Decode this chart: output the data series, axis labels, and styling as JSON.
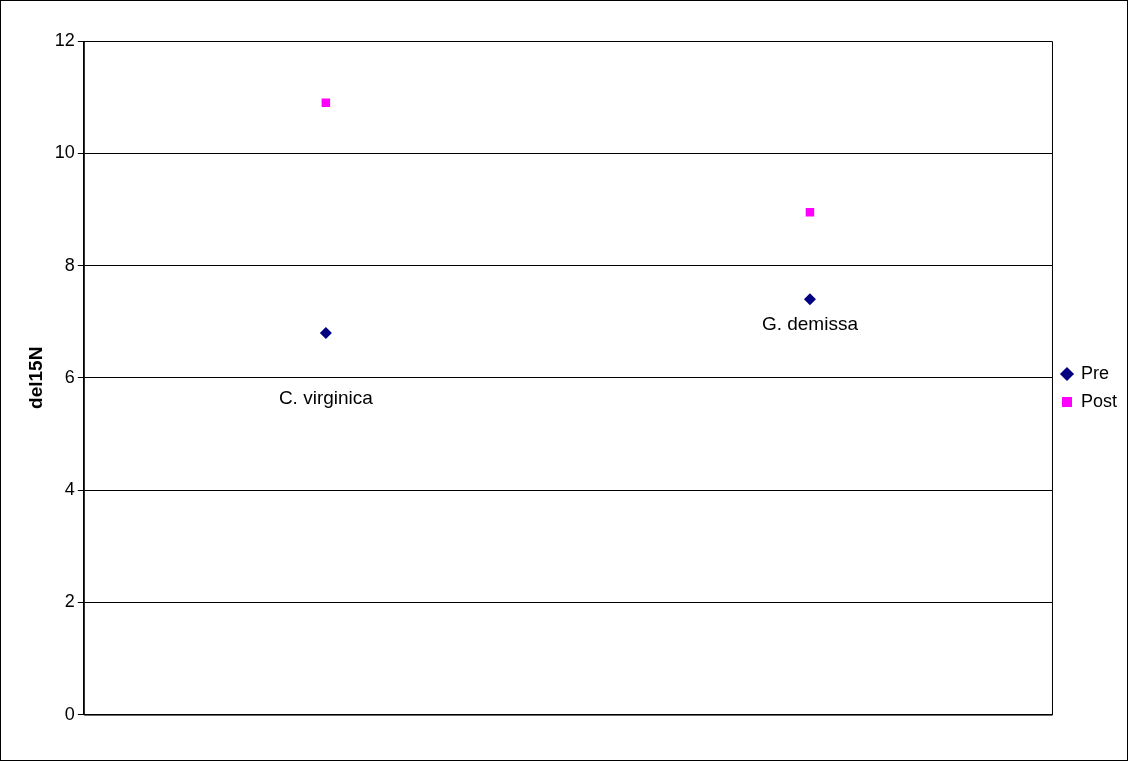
{
  "chart_data": {
    "type": "scatter",
    "ylabel": "del15N",
    "categories": [
      null,
      null
    ],
    "series": [
      {
        "name": "Pre",
        "color": "#000080",
        "values": [
          6.8,
          7.4
        ],
        "marker": "diamond"
      },
      {
        "name": "Post",
        "color": "#ff00ff",
        "values": [
          10.9,
          8.95
        ],
        "marker": "square"
      }
    ],
    "ylim": [
      0,
      12
    ],
    "yticks": [
      0,
      2,
      4,
      6,
      8,
      10,
      12
    ],
    "grid": "y",
    "legend": "right",
    "annotations": [
      {
        "text": "C. virginica",
        "y": 6.8
      },
      {
        "text": "G. demissa",
        "y": 7.4
      }
    ]
  }
}
